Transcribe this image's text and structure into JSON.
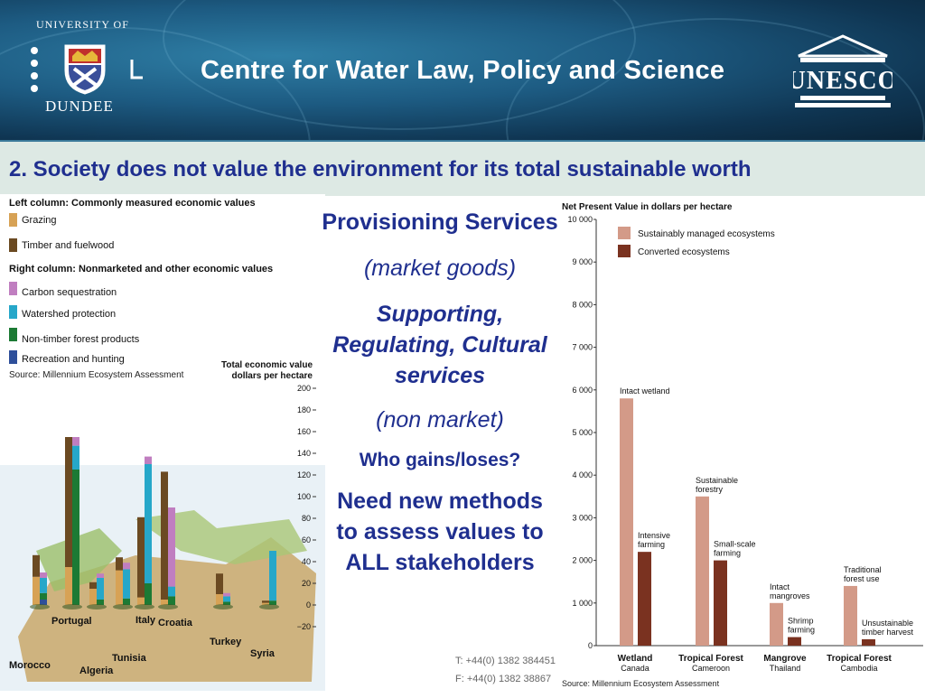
{
  "banner": {
    "university_arc": "UNIVERSITY OF",
    "university_name": "DUNDEE",
    "title": "Centre for Water Law, Policy and Science",
    "unesco_label": "UNESCO"
  },
  "slide": {
    "title": "2.  Society does not value the environment for its total sustainable worth"
  },
  "center_text": {
    "provisioning": "Provisioning Services",
    "market_goods": "(market goods)",
    "supporting": "Supporting, Regulating, Cultural services",
    "non_market": "(non market)",
    "who_gains": "Who gains/loses?",
    "need_new_line1": "Need new methods",
    "need_new_line2": "to assess values to",
    "need_new_line3": "ALL stakeholders"
  },
  "contact": {
    "phone": "T: +44(0) 1382 384451",
    "fax": "F: +44(0) 1382 38867"
  },
  "colors": {
    "grazing": "#d7a255",
    "timber": "#6b4a22",
    "carbon": "#c07ec0",
    "watershed": "#26a7c9",
    "ntfp": "#1c7a34",
    "recreation": "#2e4f9a",
    "sustainable": "#d39a88",
    "converted": "#7a3220",
    "title_blue": "#1f2f8f"
  },
  "chart_data": [
    {
      "type": "bar",
      "title": "Total economic value dollars per hectare",
      "source": "Source: Millennium Ecosystem Assessment",
      "legend_left_heading": "Left column: Commonly measured economic values",
      "legend_right_heading": "Right column: Nonmarketed and other economic values",
      "legend": [
        "Grazing",
        "Timber and fuelwood",
        "Carbon sequestration",
        "Watershed protection",
        "Non-timber forest products",
        "Recreation and hunting"
      ],
      "yticks": [
        "200",
        "180",
        "160",
        "140",
        "120",
        "100",
        "80",
        "60",
        "40",
        "20",
        "0",
        "−20"
      ],
      "ylim": [
        -20,
        200
      ],
      "countries": [
        {
          "name": "Morocco",
          "left": [
            {
              "k": "grazing",
              "v": 26
            },
            {
              "k": "timber",
              "v": 20
            }
          ],
          "right": [
            {
              "k": "recreation",
              "v": 5
            },
            {
              "k": "ntfp",
              "v": 6
            },
            {
              "k": "watershed",
              "v": 14
            },
            {
              "k": "carbon",
              "v": 5
            }
          ]
        },
        {
          "name": "Portugal",
          "left": [
            {
              "k": "grazing",
              "v": 35
            },
            {
              "k": "timber",
              "v": 120
            }
          ],
          "right": [
            {
              "k": "ntfp",
              "v": 125
            },
            {
              "k": "watershed",
              "v": 22
            },
            {
              "k": "carbon",
              "v": 8
            }
          ]
        },
        {
          "name": "Algeria",
          "left": [
            {
              "k": "grazing",
              "v": 15
            },
            {
              "k": "timber",
              "v": 6
            }
          ],
          "right": [
            {
              "k": "ntfp",
              "v": 5
            },
            {
              "k": "watershed",
              "v": 20
            },
            {
              "k": "carbon",
              "v": 4
            }
          ]
        },
        {
          "name": "Tunisia",
          "left": [
            {
              "k": "grazing",
              "v": 32
            },
            {
              "k": "timber",
              "v": 12
            }
          ],
          "right": [
            {
              "k": "ntfp",
              "v": 6
            },
            {
              "k": "watershed",
              "v": 27
            },
            {
              "k": "carbon",
              "v": 6
            }
          ]
        },
        {
          "name": "Italy",
          "left": [
            {
              "k": "grazing",
              "v": 7
            },
            {
              "k": "timber",
              "v": 74
            }
          ],
          "right": [
            {
              "k": "ntfp",
              "v": 20
            },
            {
              "k": "watershed",
              "v": 110
            },
            {
              "k": "carbon",
              "v": 7
            }
          ]
        },
        {
          "name": "Croatia",
          "left": [
            {
              "k": "grazing",
              "v": 5
            },
            {
              "k": "timber",
              "v": 118
            }
          ],
          "right": [
            {
              "k": "ntfp",
              "v": 8
            },
            {
              "k": "watershed",
              "v": 9
            },
            {
              "k": "carbon",
              "v": 73
            }
          ]
        },
        {
          "name": "Turkey",
          "left": [
            {
              "k": "grazing",
              "v": 10
            },
            {
              "k": "timber",
              "v": 19
            }
          ],
          "right": [
            {
              "k": "ntfp",
              "v": 3
            },
            {
              "k": "watershed",
              "v": 5
            },
            {
              "k": "carbon",
              "v": 3
            }
          ]
        },
        {
          "name": "Syria",
          "left": [
            {
              "k": "grazing",
              "v": 2
            },
            {
              "k": "timber",
              "v": 2
            }
          ],
          "right": [
            {
              "k": "ntfp",
              "v": 4
            },
            {
              "k": "watershed",
              "v": 46
            }
          ]
        }
      ]
    },
    {
      "type": "bar",
      "title": "Net Present Value in dollars per hectare",
      "source": "Source: Millennium Ecosystem Assessment",
      "legend": [
        "Sustainably managed ecosystems",
        "Converted ecosystems"
      ],
      "ylim": [
        0,
        10000
      ],
      "yticks": [
        "0",
        "1 000",
        "2 000",
        "3 000",
        "4 000",
        "5 000",
        "6 000",
        "7 000",
        "8 000",
        "9 000",
        "10 000"
      ],
      "categories": [
        {
          "name": "Wetland",
          "place": "Canada",
          "sustainable": 5800,
          "converted": 2200,
          "label_s": [
            "Intact wetland"
          ],
          "label_c": [
            "Intensive",
            "farming"
          ]
        },
        {
          "name": "Tropical Forest",
          "place": "Cameroon",
          "sustainable": 3500,
          "converted": 2000,
          "label_s": [
            "Sustainable",
            "forestry"
          ],
          "label_c": [
            "Small-scale",
            "farming"
          ]
        },
        {
          "name": "Mangrove",
          "place": "Thailand",
          "sustainable": 1000,
          "converted": 200,
          "label_s": [
            "Intact",
            "mangroves"
          ],
          "label_c": [
            "Shrimp",
            "farming"
          ]
        },
        {
          "name": "Tropical Forest",
          "place": "Cambodia",
          "sustainable": 1400,
          "converted": 150,
          "label_s": [
            "Traditional",
            "forest use"
          ],
          "label_c": [
            "Unsustainable",
            "timber harvest"
          ]
        }
      ]
    }
  ]
}
